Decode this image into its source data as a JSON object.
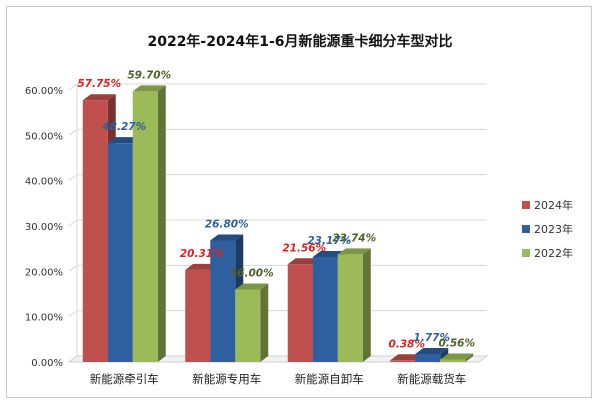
{
  "chart_data": {
    "type": "bar",
    "title": "2022年-2024年1-6月新能源重卡细分车型对比",
    "categories": [
      "新能源牵引车",
      "新能源专用车",
      "新能源自卸车",
      "新能源载货车"
    ],
    "series": [
      {
        "name": "2024年",
        "values": [
          57.75,
          20.31,
          21.56,
          0.38
        ],
        "labels": [
          "57.75%",
          "20.31%",
          "21.56%",
          "0.38%"
        ],
        "color": "#c0504d",
        "label_color": "#e02020"
      },
      {
        "name": "2023年",
        "values": [
          48.27,
          26.8,
          23.17,
          1.77
        ],
        "labels": [
          "48.27%",
          "26.80%",
          "23.17%",
          "1.77%"
        ],
        "color": "#2e5f9e",
        "label_color": "#2e5f9e"
      },
      {
        "name": "2022年",
        "values": [
          59.7,
          16.0,
          23.74,
          0.56
        ],
        "labels": [
          "59.70%",
          "16.00%",
          "23.74%",
          "0.56%"
        ],
        "color": "#9bbb59",
        "label_color": "#4f6228"
      }
    ],
    "yticks": [
      "0.00%",
      "10.00%",
      "20.00%",
      "30.00%",
      "40.00%",
      "50.00%",
      "60.00%"
    ],
    "ylim": [
      0,
      60
    ],
    "xlabel": "",
    "ylabel": "",
    "grid": true,
    "legend_position": "right"
  }
}
